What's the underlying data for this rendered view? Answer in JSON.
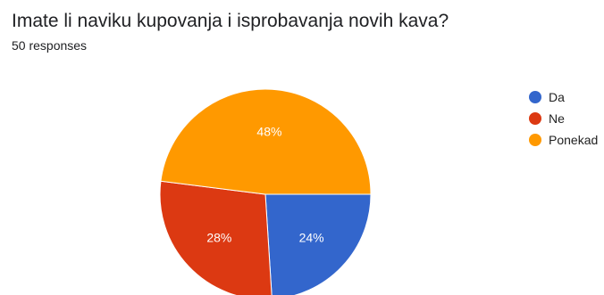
{
  "header": {
    "title": "Imate li naviku kupovanja i isprobavanja novih kava?",
    "responses": "50 responses"
  },
  "chart_data": {
    "type": "pie",
    "categories": [
      "Da",
      "Ne",
      "Ponekad"
    ],
    "values": [
      24,
      28,
      48
    ],
    "value_labels": [
      "24%",
      "28%",
      "48%"
    ],
    "colors": [
      "#3366cc",
      "#dc3912",
      "#ff9900"
    ],
    "legend_position": "right"
  }
}
